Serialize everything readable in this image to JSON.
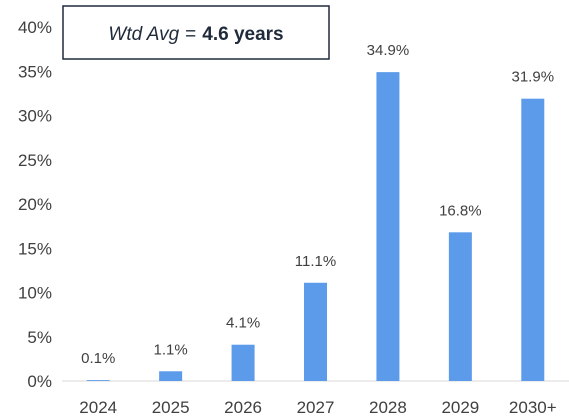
{
  "chart_data": {
    "type": "bar",
    "categories": [
      "2024",
      "2025",
      "2026",
      "2027",
      "2028",
      "2029",
      "2030+"
    ],
    "values": [
      0.1,
      1.1,
      4.1,
      11.1,
      34.9,
      16.8,
      31.9
    ],
    "data_labels": [
      "0.1%",
      "1.1%",
      "4.1%",
      "11.1%",
      "34.9%",
      "16.8%",
      "31.9%"
    ],
    "ylim": [
      0,
      40
    ],
    "yticks": [
      0,
      5,
      10,
      15,
      20,
      25,
      30,
      35,
      40
    ],
    "ytick_labels": [
      "0%",
      "5%",
      "10%",
      "15%",
      "20%",
      "25%",
      "30%",
      "35%",
      "40%"
    ],
    "grid": false,
    "bar_color": "#5b9bea",
    "annotation": {
      "prefix": "Wtd Avg",
      "operator": "=",
      "value": "4.6 years"
    }
  }
}
